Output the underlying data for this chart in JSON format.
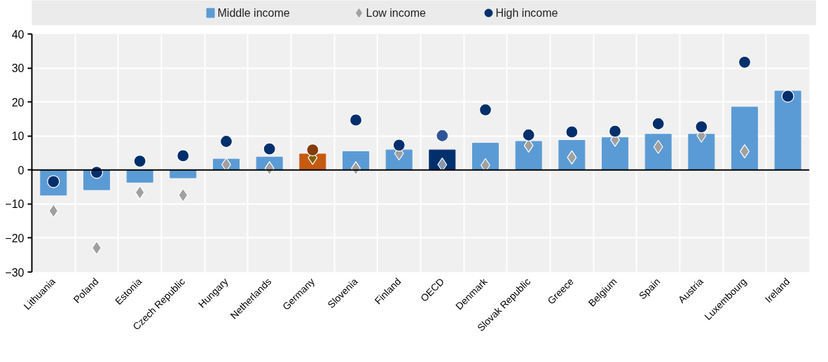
{
  "chart_data": {
    "type": "bar",
    "categories": [
      "Lithuania",
      "Poland",
      "Estonia",
      "Czech Republic",
      "Hungary",
      "Netherlands",
      "Germany",
      "Slovenia",
      "Finland",
      "OECD",
      "Denmark",
      "Slovak Republic",
      "Greece",
      "Belgium",
      "Spain",
      "Austria",
      "Luxembourg",
      "Ireland"
    ],
    "series": [
      {
        "name": "Middle income",
        "color": "#5b9bd5",
        "colors": [
          "#5b9bd5",
          "#5b9bd5",
          "#5b9bd5",
          "#5b9bd5",
          "#5b9bd5",
          "#5b9bd5",
          "#c55a11",
          "#5b9bd5",
          "#5b9bd5",
          "#002f6c",
          "#5b9bd5",
          "#5b9bd5",
          "#5b9bd5",
          "#5b9bd5",
          "#5b9bd5",
          "#5b9bd5",
          "#5b9bd5",
          "#5b9bd5"
        ],
        "values": [
          -7.4,
          -5.8,
          -3.6,
          -2.3,
          3.2,
          3.8,
          4.7,
          5.4,
          5.9,
          5.9,
          7.9,
          8.4,
          8.7,
          9.5,
          10.5,
          10.5,
          18.5,
          23.2
        ]
      },
      {
        "name": "Low income",
        "type": "scatter",
        "marker": "diamond",
        "color": "#a0a0a0",
        "colors": [
          "#a0a0a0",
          "#a0a0a0",
          "#a0a0a0",
          "#a0a0a0",
          "#a0a0a0",
          "#a0a0a0",
          "#7f6000",
          "#a0a0a0",
          "#a0a0a0",
          "#8497b0",
          "#a0a0a0",
          "#a0a0a0",
          "#a0a0a0",
          "#a0a0a0",
          "#a0a0a0",
          "#a0a0a0",
          "#a0a0a0",
          "#a0a0a0"
        ],
        "values": [
          -12.0,
          -22.9,
          -6.6,
          -7.4,
          1.6,
          0.5,
          3.6,
          0.5,
          4.9,
          1.6,
          1.4,
          7.2,
          3.7,
          8.9,
          6.8,
          10.1,
          5.5,
          null
        ]
      },
      {
        "name": "High income",
        "type": "scatter",
        "marker": "circle",
        "color": "#002f6c",
        "colors": [
          "#002f6c",
          "#002f6c",
          "#002f6c",
          "#002f6c",
          "#002f6c",
          "#002f6c",
          "#843c0c",
          "#002f6c",
          "#002f6c",
          "#2f5597",
          "#002f6c",
          "#002f6c",
          "#002f6c",
          "#002f6c",
          "#002f6c",
          "#002f6c",
          "#002f6c",
          "#002f6c"
        ],
        "values": [
          -3.4,
          -0.7,
          2.6,
          4.2,
          8.4,
          6.2,
          5.9,
          14.7,
          7.3,
          10.1,
          17.7,
          10.3,
          11.2,
          11.4,
          13.6,
          12.7,
          31.7,
          21.7
        ]
      }
    ],
    "ylim": [
      -30,
      40
    ],
    "yticks": [
      -30,
      -20,
      -10,
      0,
      10,
      20,
      30,
      40
    ],
    "grid": true,
    "legend": "top"
  }
}
